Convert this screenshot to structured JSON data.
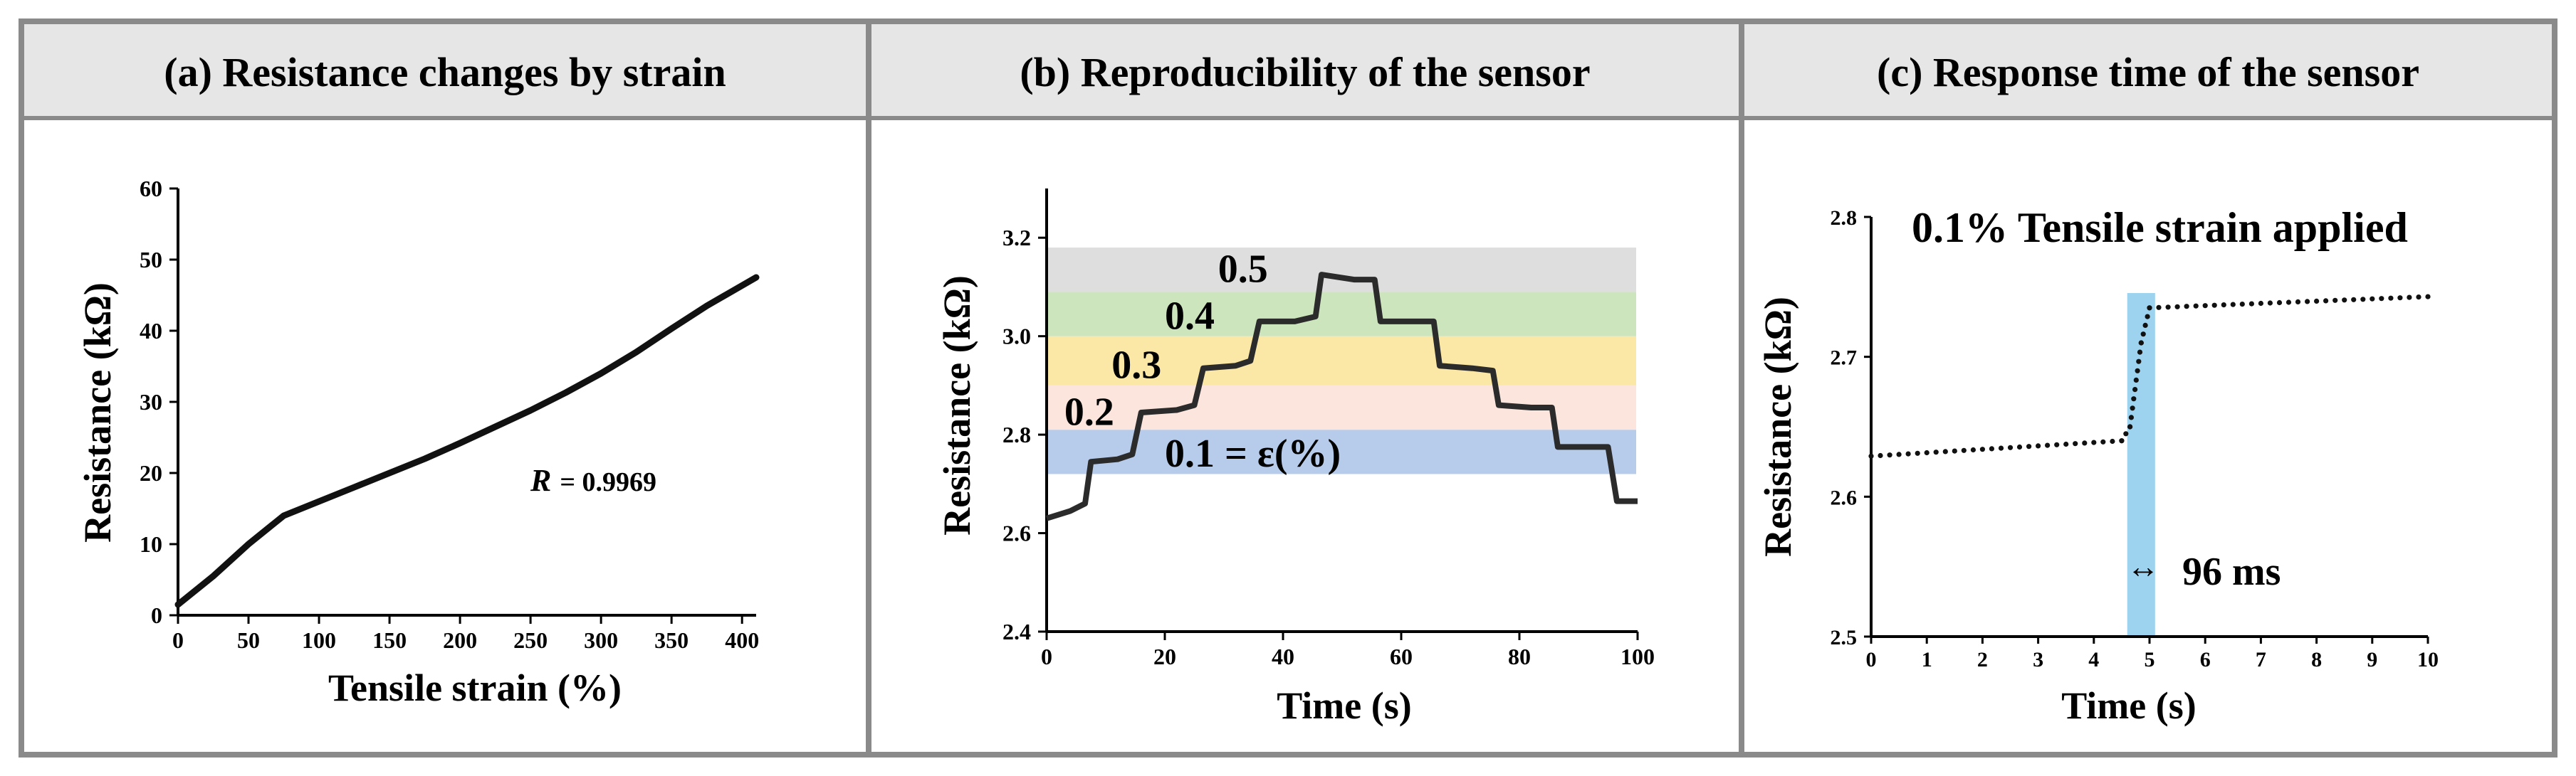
{
  "colors": {
    "frame": "#8a8a8a",
    "header_bg": "#e6e6e6",
    "line": "#111111",
    "band_gray": "#dedede",
    "band_green": "#cce5bd",
    "band_yellow": "#fbe7a6",
    "band_pink": "#fbe5dd",
    "band_blue": "#b7cbeb",
    "highlight": "#9dd3ef"
  },
  "chart_data": [
    {
      "id": "a",
      "type": "line",
      "title": "(a) Resistance changes by strain",
      "xlabel": "Tensile strain (%)",
      "ylabel": "Resistance (kΩ)",
      "xlim": [
        0,
        410
      ],
      "ylim": [
        0,
        60
      ],
      "xticks": [
        0,
        50,
        100,
        150,
        200,
        250,
        300,
        350,
        400
      ],
      "yticks": [
        0,
        10,
        20,
        30,
        40,
        50,
        60
      ],
      "x": [
        0,
        25,
        50,
        75,
        100,
        125,
        150,
        175,
        200,
        225,
        250,
        275,
        300,
        325,
        350,
        375,
        410
      ],
      "y": [
        1.5,
        5.5,
        10,
        14,
        16,
        18,
        20,
        22,
        24.2,
        26.5,
        28.8,
        31.3,
        34,
        37,
        40.3,
        43.5,
        47.5
      ],
      "annotation": {
        "prefix": "R",
        "value": "= 0.9969"
      }
    },
    {
      "id": "b",
      "type": "line",
      "title": "(b) Reproducibility of the sensor",
      "xlabel": "Time (s)",
      "ylabel": "Resistance (kΩ)",
      "xlim": [
        0,
        100
      ],
      "ylim": [
        2.4,
        3.3
      ],
      "xticks": [
        0,
        20,
        40,
        60,
        80,
        100
      ],
      "yticks": [
        2.4,
        2.6,
        2.8,
        3.0,
        3.2
      ],
      "x": [
        0,
        4,
        6.5,
        7.5,
        12,
        14.5,
        16,
        22,
        25,
        26.5,
        32,
        34.5,
        36,
        42,
        45.5,
        46.5,
        52,
        55.5,
        56.5,
        62,
        65.5,
        66.5,
        72,
        75.5,
        76.5,
        82,
        85.5,
        86.5,
        93,
        95,
        96.5,
        100
      ],
      "y": [
        2.63,
        2.645,
        2.66,
        2.745,
        2.75,
        2.76,
        2.845,
        2.85,
        2.86,
        2.935,
        2.94,
        2.95,
        3.03,
        3.03,
        3.04,
        3.125,
        3.115,
        3.115,
        3.03,
        3.03,
        3.03,
        2.94,
        2.935,
        2.93,
        2.86,
        2.855,
        2.855,
        2.775,
        2.775,
        2.775,
        2.665,
        2.665
      ],
      "bands": [
        {
          "from": 2.72,
          "to": 2.81,
          "color_key": "band_blue"
        },
        {
          "from": 2.81,
          "to": 2.9,
          "color_key": "band_pink"
        },
        {
          "from": 2.9,
          "to": 3.0,
          "color_key": "band_yellow"
        },
        {
          "from": 3.0,
          "to": 3.09,
          "color_key": "band_green"
        },
        {
          "from": 3.09,
          "to": 3.18,
          "color_key": "band_gray"
        }
      ],
      "step_labels": [
        {
          "text": "0.2",
          "x": 3,
          "y": 2.82
        },
        {
          "text": "0.3",
          "x": 11,
          "y": 2.915
        },
        {
          "text": "0.4",
          "x": 20,
          "y": 3.015
        },
        {
          "text": "0.5",
          "x": 29,
          "y": 3.11
        }
      ],
      "strain_label": {
        "text": "0.1 = ε(%)",
        "x": 20,
        "y": 2.735
      }
    },
    {
      "id": "c",
      "type": "scatter",
      "title": "(c) Response time of the sensor",
      "xlabel": "Time (s)",
      "ylabel": "Resistance (kΩ)",
      "xlim": [
        0,
        10
      ],
      "ylim": [
        2.5,
        2.8
      ],
      "xticks": [
        0,
        1,
        2,
        3,
        4,
        5,
        6,
        7,
        8,
        9,
        10
      ],
      "yticks": [
        2.5,
        2.6,
        2.7,
        2.8
      ],
      "segments": [
        {
          "x0": 0,
          "y0": 2.629,
          "x1": 4.5,
          "y1": 2.64
        },
        {
          "x0": 4.5,
          "y0": 2.64,
          "x1": 4.65,
          "y1": 2.65
        },
        {
          "x0": 4.65,
          "y0": 2.65,
          "x1": 4.85,
          "y1": 2.71
        },
        {
          "x0": 4.85,
          "y0": 2.71,
          "x1": 5.0,
          "y1": 2.735
        },
        {
          "x0": 5.0,
          "y0": 2.735,
          "x1": 10,
          "y1": 2.743
        }
      ],
      "highlight": {
        "from": 4.6,
        "to": 5.1
      },
      "annotation": "0.1% Tensile strain applied",
      "duration_label": "96 ms",
      "duration_arrow": "↔"
    }
  ]
}
